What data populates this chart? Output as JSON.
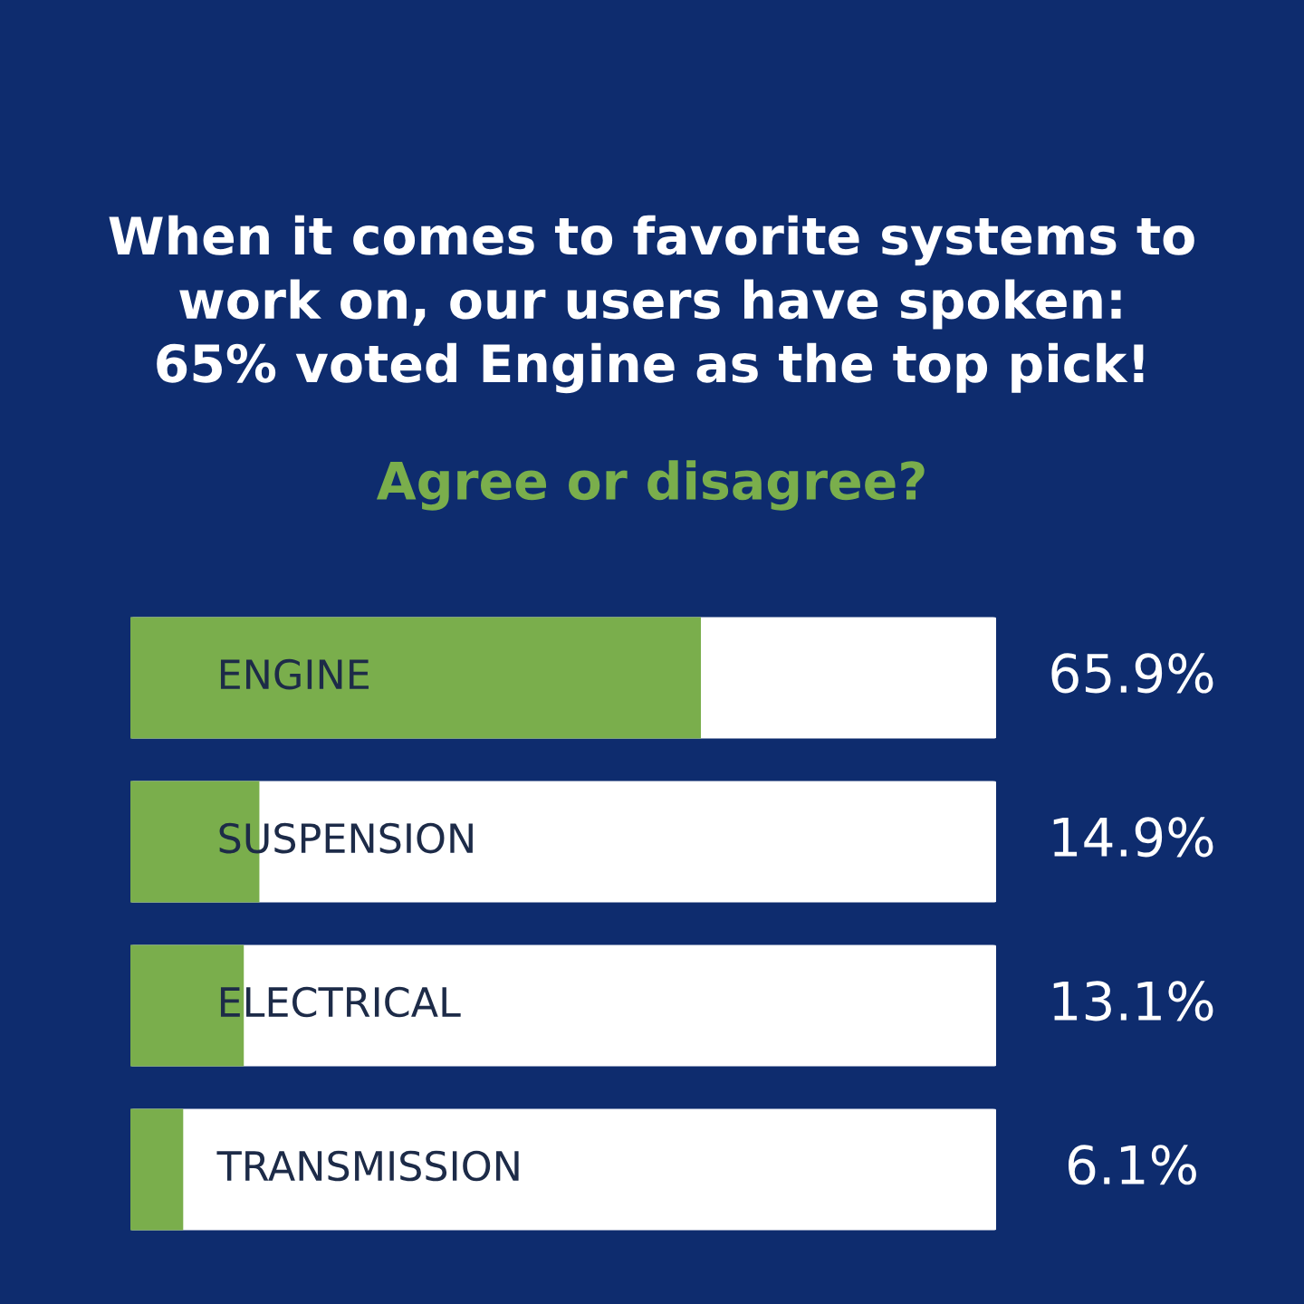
{
  "chart_data": {
    "type": "bar",
    "orientation": "horizontal",
    "title": "When it comes to favorite systems to\nwork on, our users have spoken:\n65% voted Engine as the top pick!",
    "subtitle": "Agree or disagree?",
    "categories": [
      "ENGINE",
      "SUSPENSION",
      "ELECTRICAL",
      "TRANSMISSION"
    ],
    "values": [
      65.9,
      14.9,
      13.1,
      6.1
    ],
    "value_labels": [
      "65.9%",
      "14.9%",
      "13.1%",
      "6.1%"
    ],
    "color": "#7aae4c",
    "xlim": [
      0,
      100
    ],
    "tick_labels": false
  }
}
